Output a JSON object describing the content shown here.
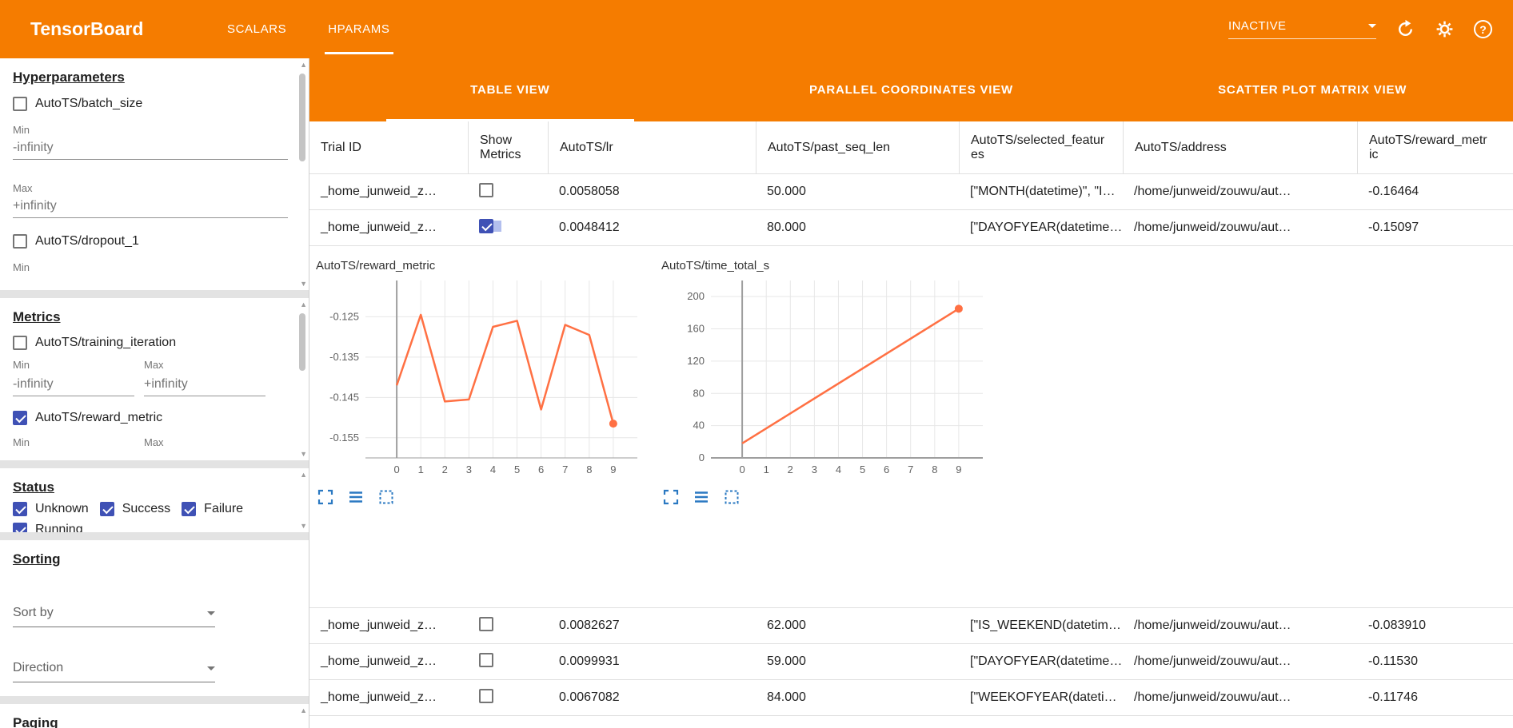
{
  "colors": {
    "header_orange": "#f57c00",
    "checkbox_blue": "#3f51b5",
    "chart_line": "#ff7043",
    "toolbar_icon_blue": "#2b79c2"
  },
  "header": {
    "title": "TensorBoard",
    "tabs": [
      {
        "label": "SCALARS",
        "active": false
      },
      {
        "label": "HPARAMS",
        "active": true
      }
    ],
    "run_status": "INACTIVE"
  },
  "sidebar": {
    "hyperparameters": {
      "title": "Hyperparameters",
      "items": [
        {
          "label": "AutoTS/batch_size",
          "checked": false,
          "min_label": "Min",
          "min_value": "-infinity",
          "max_label": "Max",
          "max_value": "+infinity"
        },
        {
          "label": "AutoTS/dropout_1",
          "checked": false,
          "min_label": "Min"
        }
      ]
    },
    "metrics": {
      "title": "Metrics",
      "items": [
        {
          "label": "AutoTS/training_iteration",
          "checked": false,
          "min_label": "Min",
          "min_value": "-infinity",
          "max_label": "Max",
          "max_value": "+infinity"
        },
        {
          "label": "AutoTS/reward_metric",
          "checked": true,
          "min_label": "Min",
          "max_label": "Max"
        }
      ]
    },
    "status": {
      "title": "Status",
      "items": [
        {
          "label": "Unknown",
          "checked": true
        },
        {
          "label": "Success",
          "checked": true
        },
        {
          "label": "Failure",
          "checked": true
        },
        {
          "label": "Running",
          "checked": true
        }
      ]
    },
    "sorting": {
      "title": "Sorting",
      "sort_by_placeholder": "Sort by",
      "direction_placeholder": "Direction"
    },
    "paging": {
      "title": "Paging"
    }
  },
  "main": {
    "view_tabs": [
      {
        "label": "TABLE VIEW",
        "active": true
      },
      {
        "label": "PARALLEL COORDINATES VIEW",
        "active": false
      },
      {
        "label": "SCATTER PLOT MATRIX VIEW",
        "active": false
      }
    ],
    "table": {
      "columns": [
        "Trial ID",
        "Show Metrics",
        "AutoTS/lr",
        "AutoTS/past_seq_len",
        "AutoTS/selected_features",
        "AutoTS/address",
        "AutoTS/reward_metric"
      ],
      "expanded_row_index": 1,
      "rows": [
        {
          "trial_id": "_home_junweid_z…",
          "show_metrics": false,
          "lr": "0.0058058",
          "past_seq_len": "50.000",
          "selected_features": "[\"MONTH(datetime)\", \"I…",
          "address": "/home/junweid/zouwu/aut…",
          "reward_metric": "-0.16464"
        },
        {
          "trial_id": "_home_junweid_z…",
          "show_metrics": true,
          "lr": "0.0048412",
          "past_seq_len": "80.000",
          "selected_features": "[\"DAYOFYEAR(datetime…",
          "address": "/home/junweid/zouwu/aut…",
          "reward_metric": "-0.15097"
        },
        {
          "trial_id": "_home_junweid_z…",
          "show_metrics": false,
          "lr": "0.0082627",
          "past_seq_len": "62.000",
          "selected_features": "[\"IS_WEEKEND(datetim…",
          "address": "/home/junweid/zouwu/aut…",
          "reward_metric": "-0.083910"
        },
        {
          "trial_id": "_home_junweid_z…",
          "show_metrics": false,
          "lr": "0.0099931",
          "past_seq_len": "59.000",
          "selected_features": "[\"DAYOFYEAR(datetime…",
          "address": "/home/junweid/zouwu/aut…",
          "reward_metric": "-0.11530"
        },
        {
          "trial_id": "_home_junweid_z…",
          "show_metrics": false,
          "lr": "0.0067082",
          "past_seq_len": "84.000",
          "selected_features": "[\"WEEKOFYEAR(dateti…",
          "address": "/home/junweid/zouwu/aut…",
          "reward_metric": "-0.11746"
        }
      ]
    }
  },
  "chart_data": [
    {
      "type": "line",
      "title": "AutoTS/reward_metric",
      "x": [
        0,
        1,
        2,
        3,
        4,
        5,
        6,
        7,
        8,
        9
      ],
      "values": [
        -0.142,
        -0.1245,
        -0.146,
        -0.1455,
        -0.1275,
        -0.126,
        -0.148,
        -0.127,
        -0.1295,
        -0.1515
      ],
      "xlim": [
        -1.3,
        10
      ],
      "ylim": [
        -0.16,
        -0.116
      ],
      "xticks": [
        0,
        1,
        2,
        3,
        4,
        5,
        6,
        7,
        8,
        9
      ],
      "xtick_labels": [
        "0",
        "1",
        "2",
        "3",
        "4",
        "5",
        "6",
        "7",
        "8",
        "9"
      ],
      "yticks": [
        -0.125,
        -0.135,
        -0.145,
        -0.155
      ],
      "ytick_labels": [
        "-0.125",
        "-0.135",
        "-0.145",
        "-0.155"
      ],
      "grid": true,
      "legend": false,
      "color": "#ff7043",
      "endpoint_dot": true,
      "zero_baseline": false
    },
    {
      "type": "line",
      "title": "AutoTS/time_total_s",
      "x": [
        0,
        9
      ],
      "values": [
        18,
        185
      ],
      "xlim": [
        -1.3,
        10
      ],
      "ylim": [
        0,
        220
      ],
      "xticks": [
        0,
        1,
        2,
        3,
        4,
        5,
        6,
        7,
        8,
        9
      ],
      "xtick_labels": [
        "0",
        "1",
        "2",
        "3",
        "4",
        "5",
        "6",
        "7",
        "8",
        "9"
      ],
      "yticks": [
        0,
        40,
        80,
        120,
        160,
        200
      ],
      "ytick_labels": [
        "0",
        "40",
        "80",
        "120",
        "160",
        "200"
      ],
      "grid": true,
      "legend": false,
      "color": "#ff7043",
      "endpoint_dot": true,
      "zero_baseline": true
    }
  ]
}
